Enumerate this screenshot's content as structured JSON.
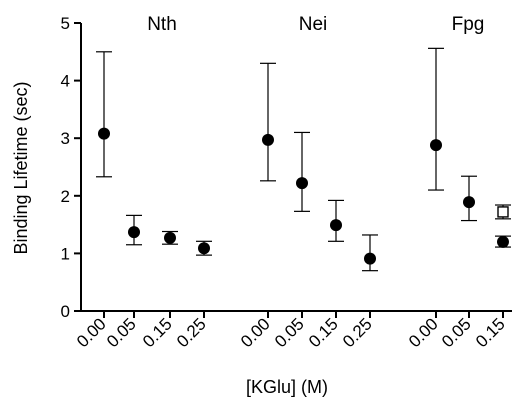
{
  "chart_data": {
    "type": "scatter",
    "xlabel": "[KGlu] (M)",
    "ylabel": "Binding Lifetime (sec)",
    "ylim": [
      0,
      5
    ],
    "yticks": [
      0,
      1,
      2,
      3,
      4,
      5
    ],
    "grid": false,
    "groups": [
      {
        "label": "Nth",
        "points": [
          {
            "x": "0.00",
            "y": 3.08,
            "err_low": 2.33,
            "err_high": 4.5,
            "marker": "filled-circle"
          },
          {
            "x": "0.05",
            "y": 1.37,
            "err_low": 1.15,
            "err_high": 1.66,
            "marker": "filled-circle"
          },
          {
            "x": "0.15",
            "y": 1.27,
            "err_low": 1.16,
            "err_high": 1.38,
            "marker": "filled-circle"
          },
          {
            "x": "0.25",
            "y": 1.09,
            "err_low": 0.97,
            "err_high": 1.21,
            "marker": "filled-circle"
          }
        ]
      },
      {
        "label": "Nei",
        "points": [
          {
            "x": "0.00",
            "y": 2.97,
            "err_low": 2.26,
            "err_high": 4.3,
            "marker": "filled-circle"
          },
          {
            "x": "0.05",
            "y": 2.22,
            "err_low": 1.73,
            "err_high": 3.1,
            "marker": "filled-circle"
          },
          {
            "x": "0.15",
            "y": 1.49,
            "err_low": 1.21,
            "err_high": 1.92,
            "marker": "filled-circle"
          },
          {
            "x": "0.25",
            "y": 0.91,
            "err_low": 0.7,
            "err_high": 1.32,
            "marker": "filled-circle"
          }
        ]
      },
      {
        "label": "Fpg",
        "points": [
          {
            "x": "0.00",
            "y": 2.88,
            "err_low": 2.1,
            "err_high": 4.56,
            "marker": "filled-circle"
          },
          {
            "x": "0.05",
            "y": 1.89,
            "err_low": 1.57,
            "err_high": 2.34,
            "marker": "filled-circle"
          },
          {
            "x": "0.15",
            "y": 1.2,
            "err_low": 1.11,
            "err_high": 1.3,
            "marker": "filled-circle"
          },
          {
            "x": "0.15",
            "y": 1.72,
            "err_low": 1.6,
            "err_high": 1.84,
            "marker": "open-square"
          }
        ]
      }
    ]
  }
}
